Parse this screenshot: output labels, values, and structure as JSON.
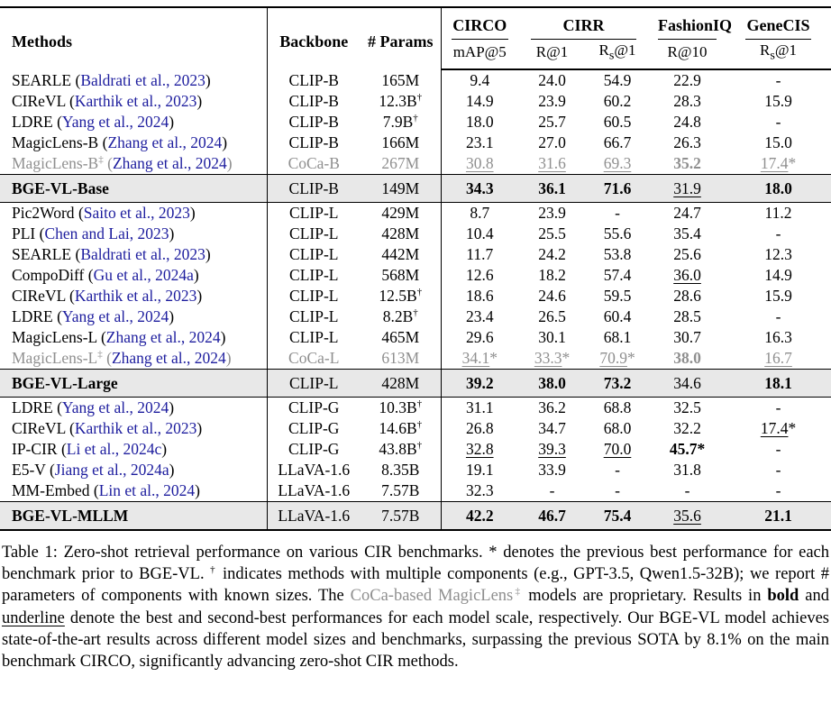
{
  "colors": {
    "citation_blue": "#1d1d9e",
    "muted_gray": "#8f8f8f",
    "summary_row_bg": "#e8e8e8"
  },
  "table": {
    "columns": {
      "methods": "Methods",
      "backbone": "Backbone",
      "params": "# Params"
    },
    "groups": [
      {
        "label": "CIRCO"
      },
      {
        "label": "CIRR"
      },
      {
        "label": "FashionIQ"
      },
      {
        "label": "GeneCIS"
      }
    ],
    "subheaders": {
      "circo": "mAP@5",
      "cirr_r1": "R@1",
      "rs_pre": "R",
      "rs_sub": "s",
      "rs_post": "@1",
      "fashioniq": "R@10"
    },
    "sections": [
      {
        "rows": [
          {
            "method": "SEARLE",
            "cite": "Baldrati et al., 2023",
            "backbone": "CLIP-B",
            "params": "165M",
            "cells": [
              {
                "v": "9.4"
              },
              {
                "v": "24.0"
              },
              {
                "v": "54.9"
              },
              {
                "v": "22.9"
              },
              {
                "v": "-"
              }
            ]
          },
          {
            "method": "CIReVL",
            "cite": "Karthik et al., 2023",
            "backbone": "CLIP-B",
            "params": "12.3B",
            "params_sup": "†",
            "cells": [
              {
                "v": "14.9"
              },
              {
                "v": "23.9"
              },
              {
                "v": "60.2"
              },
              {
                "v": "28.3"
              },
              {
                "v": "15.9"
              }
            ]
          },
          {
            "method": "LDRE",
            "cite": "Yang et al., 2024",
            "backbone": "CLIP-B",
            "params": "7.9B",
            "params_sup": "†",
            "cells": [
              {
                "v": "18.0"
              },
              {
                "v": "25.7"
              },
              {
                "v": "60.5"
              },
              {
                "v": "24.8"
              },
              {
                "v": "-"
              }
            ]
          },
          {
            "method": "MagicLens-B",
            "cite": "Zhang et al., 2024",
            "backbone": "CLIP-B",
            "params": "166M",
            "cells": [
              {
                "v": "23.1"
              },
              {
                "v": "27.0"
              },
              {
                "v": "66.7"
              },
              {
                "v": "26.3"
              },
              {
                "v": "15.0"
              }
            ]
          },
          {
            "method": "MagicLens-B",
            "method_sup": "‡",
            "cite": "Zhang et al., 2024",
            "backbone": "CoCa-B",
            "params": "267M",
            "muted": true,
            "cells": [
              {
                "v": "30.8",
                "u": true
              },
              {
                "v": "31.6",
                "u": true
              },
              {
                "v": "69.3",
                "u": true
              },
              {
                "v": "35.2",
                "b": true
              },
              {
                "v": "17.4",
                "u": true,
                "star": true
              }
            ]
          }
        ],
        "summary": {
          "method": "BGE-VL-Base",
          "backbone": "CLIP-B",
          "params": "149M",
          "cells": [
            {
              "v": "34.3",
              "b": true
            },
            {
              "v": "36.1",
              "b": true
            },
            {
              "v": "71.6",
              "b": true
            },
            {
              "v": "31.9",
              "u": true
            },
            {
              "v": "18.0",
              "b": true
            }
          ]
        }
      },
      {
        "rows": [
          {
            "method": "Pic2Word",
            "cite": "Saito et al., 2023",
            "backbone": "CLIP-L",
            "params": "429M",
            "cells": [
              {
                "v": "8.7"
              },
              {
                "v": "23.9"
              },
              {
                "v": "-"
              },
              {
                "v": "24.7"
              },
              {
                "v": "11.2"
              }
            ]
          },
          {
            "method": "PLI",
            "cite": "Chen and Lai, 2023",
            "backbone": "CLIP-L",
            "params": "428M",
            "cells": [
              {
                "v": "10.4"
              },
              {
                "v": "25.5"
              },
              {
                "v": "55.6"
              },
              {
                "v": "35.4"
              },
              {
                "v": "-"
              }
            ]
          },
          {
            "method": "SEARLE",
            "cite": "Baldrati et al., 2023",
            "backbone": "CLIP-L",
            "params": "442M",
            "cells": [
              {
                "v": "11.7"
              },
              {
                "v": "24.2"
              },
              {
                "v": "53.8"
              },
              {
                "v": "25.6"
              },
              {
                "v": "12.3"
              }
            ]
          },
          {
            "method": "CompoDiff",
            "cite": "Gu et al., 2024a",
            "backbone": "CLIP-L",
            "params": "568M",
            "cells": [
              {
                "v": "12.6"
              },
              {
                "v": "18.2"
              },
              {
                "v": "57.4"
              },
              {
                "v": "36.0",
                "u": true
              },
              {
                "v": "14.9"
              }
            ]
          },
          {
            "method": "CIReVL",
            "cite": "Karthik et al., 2023",
            "backbone": "CLIP-L",
            "params": "12.5B",
            "params_sup": "†",
            "cells": [
              {
                "v": "18.6"
              },
              {
                "v": "24.6"
              },
              {
                "v": "59.5"
              },
              {
                "v": "28.6"
              },
              {
                "v": "15.9"
              }
            ]
          },
          {
            "method": "LDRE",
            "cite": "Yang et al., 2024",
            "backbone": "CLIP-L",
            "params": "8.2B",
            "params_sup": "†",
            "cells": [
              {
                "v": "23.4"
              },
              {
                "v": "26.5"
              },
              {
                "v": "60.4"
              },
              {
                "v": "28.5"
              },
              {
                "v": "-"
              }
            ]
          },
          {
            "method": "MagicLens-L",
            "cite": "Zhang et al., 2024",
            "backbone": "CLIP-L",
            "params": "465M",
            "cells": [
              {
                "v": "29.6"
              },
              {
                "v": "30.1"
              },
              {
                "v": "68.1"
              },
              {
                "v": "30.7"
              },
              {
                "v": "16.3"
              }
            ]
          },
          {
            "method": "MagicLens-L",
            "method_sup": "‡",
            "cite": "Zhang et al., 2024",
            "backbone": "CoCa-L",
            "params": "613M",
            "muted": true,
            "cells": [
              {
                "v": "34.1",
                "u": true,
                "star": true
              },
              {
                "v": "33.3",
                "u": true,
                "star": true
              },
              {
                "v": "70.9",
                "u": true,
                "star": true
              },
              {
                "v": "38.0",
                "b": true
              },
              {
                "v": "16.7",
                "u": true
              }
            ]
          }
        ],
        "summary": {
          "method": "BGE-VL-Large",
          "backbone": "CLIP-L",
          "params": "428M",
          "cells": [
            {
              "v": "39.2",
              "b": true
            },
            {
              "v": "38.0",
              "b": true
            },
            {
              "v": "73.2",
              "b": true
            },
            {
              "v": "34.6"
            },
            {
              "v": "18.1",
              "b": true
            }
          ]
        }
      },
      {
        "rows": [
          {
            "method": "LDRE",
            "cite": "Yang et al., 2024",
            "backbone": "CLIP-G",
            "params": "10.3B",
            "params_sup": "†",
            "cells": [
              {
                "v": "31.1"
              },
              {
                "v": "36.2"
              },
              {
                "v": "68.8"
              },
              {
                "v": "32.5"
              },
              {
                "v": "-"
              }
            ]
          },
          {
            "method": "CIReVL",
            "cite": "Karthik et al., 2023",
            "backbone": "CLIP-G",
            "params": "14.6B",
            "params_sup": "†",
            "cells": [
              {
                "v": "26.8"
              },
              {
                "v": "34.7"
              },
              {
                "v": "68.0"
              },
              {
                "v": "32.2"
              },
              {
                "v": "17.4",
                "u": true,
                "star": true
              }
            ]
          },
          {
            "method": "IP-CIR",
            "cite": "Li et al., 2024c",
            "backbone": "CLIP-G",
            "params": "43.8B",
            "params_sup": "†",
            "cells": [
              {
                "v": "32.8",
                "u": true
              },
              {
                "v": "39.3",
                "u": true
              },
              {
                "v": "70.0",
                "u": true
              },
              {
                "v": "45.7",
                "b": true,
                "star": true
              },
              {
                "v": "-"
              }
            ]
          },
          {
            "method": "E5-V",
            "cite": "Jiang et al., 2024a",
            "backbone": "LLaVA-1.6",
            "params": "8.35B",
            "cells": [
              {
                "v": "19.1"
              },
              {
                "v": "33.9"
              },
              {
                "v": "-"
              },
              {
                "v": "31.8"
              },
              {
                "v": "-"
              }
            ]
          },
          {
            "method": "MM-Embed",
            "cite": "Lin et al., 2024",
            "backbone": "LLaVA-1.6",
            "params": "7.57B",
            "cells": [
              {
                "v": "32.3"
              },
              {
                "v": "-"
              },
              {
                "v": "-"
              },
              {
                "v": "-"
              },
              {
                "v": "-"
              }
            ]
          }
        ],
        "summary": {
          "method": "BGE-VL-MLLM",
          "backbone": "LLaVA-1.6",
          "params": "7.57B",
          "cells": [
            {
              "v": "42.2",
              "b": true
            },
            {
              "v": "46.7",
              "b": true
            },
            {
              "v": "75.4",
              "b": true
            },
            {
              "v": "35.6",
              "u": true
            },
            {
              "v": "21.1",
              "b": true
            }
          ]
        }
      }
    ]
  },
  "caption": {
    "segments": [
      {
        "t": "Table 1: Zero-shot retrieval performance on various CIR benchmarks. * denotes the previous best performance for each benchmark prior to BGE-VL. ",
        "style": "normal"
      },
      {
        "t": "†",
        "style": "sup"
      },
      {
        "t": " indicates methods with multiple components (e.g., GPT-3.5, Qwen1.5-32B); we report # parameters of components with known sizes. The ",
        "style": "normal"
      },
      {
        "t": "CoCa-based MagicLens",
        "style": "gray"
      },
      {
        "t": "‡",
        "style": "gray-sup"
      },
      {
        "t": " models are proprietary. Results in ",
        "style": "normal"
      },
      {
        "t": "bold",
        "style": "bold"
      },
      {
        "t": " and ",
        "style": "normal"
      },
      {
        "t": "underline",
        "style": "underline"
      },
      {
        "t": " denote the best and second-best performances for each model scale, respectively. Our BGE-VL model achieves state-of-the-art results across different model sizes and benchmarks, surpassing the previous SOTA by 8.1% on the main benchmark CIRCO, significantly advancing zero-shot CIR methods.",
        "style": "normal"
      }
    ]
  }
}
